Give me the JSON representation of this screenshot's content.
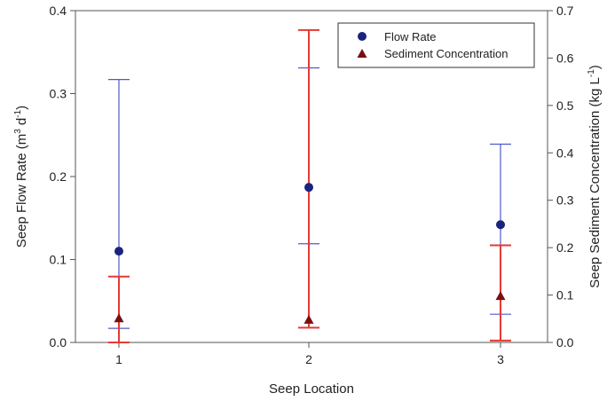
{
  "chart_data": {
    "type": "scatter",
    "categories": [
      "1",
      "2",
      "3"
    ],
    "xlabel": "Seep Location",
    "ylabel": {
      "base": "Seep Flow Rate (m",
      "sup1": "3",
      "mid": " d",
      "sup2": "-1",
      "end": ")"
    },
    "y2label": {
      "base": "Seep Sediment Concentration (kg L",
      "sup1": "-1",
      "end": ")"
    },
    "ylim": [
      0,
      0.4
    ],
    "y2lim": [
      0,
      0.7
    ],
    "yticks": [
      "0.0",
      "0.1",
      "0.2",
      "0.3",
      "0.4"
    ],
    "y2ticks": [
      "0.0",
      "0.1",
      "0.2",
      "0.3",
      "0.4",
      "0.5",
      "0.6",
      "0.7"
    ],
    "legend_position": "top-right",
    "grid": false,
    "series": [
      {
        "name": "Flow Rate",
        "axis": "left",
        "marker": "circle",
        "color": "#1a237e",
        "error_color": "#5059c8",
        "values": [
          0.11,
          0.187,
          0.142
        ],
        "error_low": [
          0.017,
          0.119,
          0.034
        ],
        "error_high": [
          0.317,
          0.331,
          0.239
        ]
      },
      {
        "name": "Sediment Concentration",
        "axis": "right",
        "marker": "triangle",
        "color": "#7a0f0f",
        "error_color": "#e53935",
        "values": [
          0.05,
          0.047,
          0.097
        ],
        "error_low": [
          0.0,
          0.031,
          0.004
        ],
        "error_high": [
          0.139,
          0.659,
          0.205
        ]
      }
    ]
  }
}
